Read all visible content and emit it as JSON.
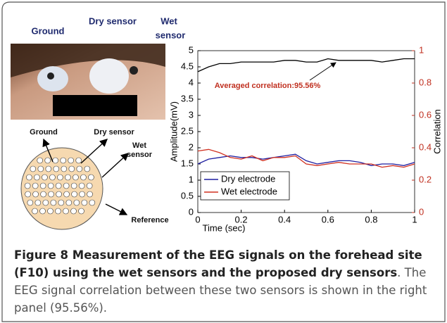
{
  "photo": {
    "ground": "Ground",
    "dry_sensor": "Dry sensor",
    "wet_sensor": [
      "Wet",
      "sensor"
    ]
  },
  "diagram": {
    "ground": "Ground",
    "dry_sensor": "Dry sensor",
    "wet_sensor": [
      "Wet",
      "sensor"
    ],
    "reference": "Reference"
  },
  "chart_data": {
    "type": "line",
    "xlabel": "Time (sec)",
    "ylabel": "Amplitude(mV)",
    "y2label": "Correlation",
    "annotation": "Averaged correlation:95.56%",
    "x": [
      0,
      0.05,
      0.1,
      0.15,
      0.2,
      0.25,
      0.3,
      0.35,
      0.4,
      0.45,
      0.5,
      0.55,
      0.6,
      0.65,
      0.7,
      0.75,
      0.8,
      0.85,
      0.9,
      0.95,
      1
    ],
    "xlim": [
      0,
      1
    ],
    "xticks": [
      0,
      0.2,
      0.4,
      0.6,
      0.8,
      1
    ],
    "ylim": [
      0,
      5
    ],
    "yticks": [
      0,
      0.5,
      1,
      1.5,
      2,
      2.5,
      3,
      3.5,
      4,
      4.5,
      5
    ],
    "y2lim": [
      0,
      1
    ],
    "y2ticks": [
      0,
      0.2,
      0.4,
      0.6,
      0.8,
      1
    ],
    "series": [
      {
        "name": "Dry electrode",
        "color": "#1f1fa0",
        "values": [
          1.5,
          1.65,
          1.7,
          1.75,
          1.7,
          1.7,
          1.65,
          1.7,
          1.75,
          1.8,
          1.6,
          1.5,
          1.55,
          1.6,
          1.6,
          1.55,
          1.45,
          1.5,
          1.5,
          1.45,
          1.55
        ]
      },
      {
        "name": "Wet electrode",
        "color": "#d03020",
        "values": [
          1.9,
          1.95,
          1.85,
          1.7,
          1.65,
          1.75,
          1.6,
          1.7,
          1.7,
          1.75,
          1.5,
          1.45,
          1.5,
          1.55,
          1.5,
          1.5,
          1.5,
          1.4,
          1.45,
          1.4,
          1.5
        ]
      },
      {
        "color": "#000000",
        "axis": "y2",
        "values": [
          0.87,
          0.9,
          0.92,
          0.92,
          0.93,
          0.93,
          0.93,
          0.93,
          0.94,
          0.94,
          0.93,
          0.93,
          0.95,
          0.94,
          0.94,
          0.94,
          0.94,
          0.93,
          0.94,
          0.95,
          0.95
        ]
      }
    ]
  },
  "caption": {
    "title": "Figure 8 Measurement of the EEG signals on the forehead site (F10) using the wet sensors and the proposed dry sensors",
    "text": ". The EEG signal correlation between these two sensors is shown in the right panel (95.56%)."
  }
}
